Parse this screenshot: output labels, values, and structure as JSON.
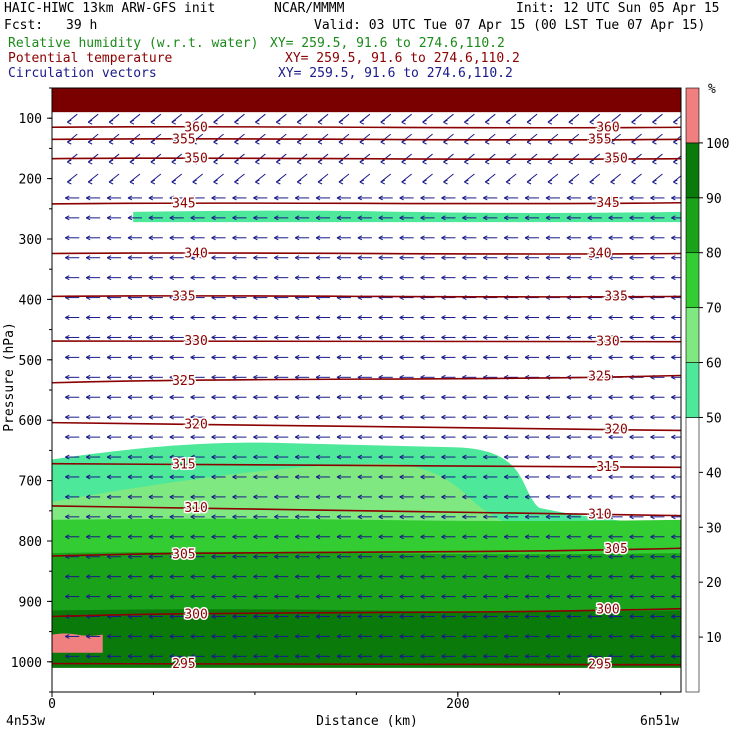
{
  "header": {
    "model": "HAIC-HIWC 13km ARW-GFS init",
    "org": "NCAR/MMMM",
    "init": "Init: 12 UTC Sun 05 Apr 15",
    "fcst_label": "Fcst:",
    "fcst_value": "39 h",
    "valid": "Valid: 03 UTC Tue 07 Apr 15 (00 LST Tue 07 Apr 15)",
    "fields": [
      {
        "name": "Relative humidity (w.r.t. water)",
        "xy": "XY= 259.5, 91.6 to 274.6,110.2",
        "color": "#1a8a1a"
      },
      {
        "name": "Potential temperature",
        "xy": "XY= 259.5, 91.6 to 274.6,110.2",
        "color": "#8b0000"
      },
      {
        "name": "Circulation vectors",
        "xy": "XY= 259.5, 91.6 to 274.6,110.2",
        "color": "#1a1a8a"
      }
    ]
  },
  "chart_data": {
    "type": "heatmap",
    "xlabel": "Distance (km)",
    "ylabel": "Pressure (hPa)",
    "x_ticks": [
      0,
      200
    ],
    "x_range_km": [
      0,
      310
    ],
    "x_end_labels": [
      "4n53w",
      "6n51w"
    ],
    "y_ticks": [
      100,
      200,
      300,
      400,
      500,
      600,
      700,
      800,
      900,
      1000
    ],
    "y_range_hPa": [
      50,
      1050
    ],
    "colorbar": {
      "unit": "%",
      "ticks": [
        10,
        20,
        30,
        40,
        50,
        60,
        70,
        80,
        90,
        100
      ],
      "bins": [
        {
          "from": 0,
          "to": 50,
          "color": "#ffffff"
        },
        {
          "from": 50,
          "to": 60,
          "color": "#4de89a"
        },
        {
          "from": 60,
          "to": 70,
          "color": "#80e880"
        },
        {
          "from": 70,
          "to": 80,
          "color": "#33cc33"
        },
        {
          "from": 80,
          "to": 90,
          "color": "#1aa31a"
        },
        {
          "from": 90,
          "to": 100,
          "color": "#0a7a0a"
        },
        {
          "from": 100,
          "to": 110,
          "color": "#f08080"
        }
      ]
    },
    "rh_regions": [
      {
        "level": "50-60",
        "desc": "thin band near 260 hPa",
        "x": [
          40,
          310
        ],
        "p": [
          255,
          272
        ]
      },
      {
        "level": "50-60",
        "desc": "mid-level moist tongue",
        "x": [
          0,
          240
        ],
        "p": [
          635,
          800
        ]
      },
      {
        "level": "60-70",
        "x": [
          0,
          310
        ],
        "p": [
          670,
          830
        ]
      },
      {
        "level": "70-80",
        "x": [
          0,
          310
        ],
        "p": [
          765,
          880
        ]
      },
      {
        "level": "80-90",
        "x": [
          0,
          310
        ],
        "p": [
          820,
          1000
        ]
      },
      {
        "level": "90-100",
        "x": [
          0,
          310
        ],
        "p": [
          915,
          1010
        ]
      },
      {
        "level": ">100",
        "x": [
          0,
          25
        ],
        "p": [
          955,
          985
        ]
      }
    ],
    "theta_contours": [
      {
        "value": 295,
        "p_left": 1003,
        "p_right": 1005
      },
      {
        "value": 300,
        "p_left": 925,
        "p_right": 912
      },
      {
        "value": 305,
        "p_left": 825,
        "p_right": 812
      },
      {
        "value": 310,
        "p_left": 742,
        "p_right": 758
      },
      {
        "value": 315,
        "p_left": 672,
        "p_right": 678
      },
      {
        "value": 320,
        "p_left": 604,
        "p_right": 617
      },
      {
        "value": 325,
        "p_left": 538,
        "p_right": 526
      },
      {
        "value": 330,
        "p_left": 469,
        "p_right": 470
      },
      {
        "value": 335,
        "p_left": 395,
        "p_right": 395
      },
      {
        "value": 340,
        "p_left": 324,
        "p_right": 324
      },
      {
        "value": 345,
        "p_left": 242,
        "p_right": 240
      },
      {
        "value": 350,
        "p_left": 167,
        "p_right": 167
      },
      {
        "value": 355,
        "p_left": 135,
        "p_right": 135
      },
      {
        "value": 360,
        "p_left": 115,
        "p_right": 115
      }
    ],
    "stratosphere_fill": {
      "color": "#7a0000",
      "p": [
        50,
        90
      ]
    },
    "vectors": "circulation vectors, westward at most levels, strong curved flow near 150-200 hPa",
    "title": ""
  }
}
